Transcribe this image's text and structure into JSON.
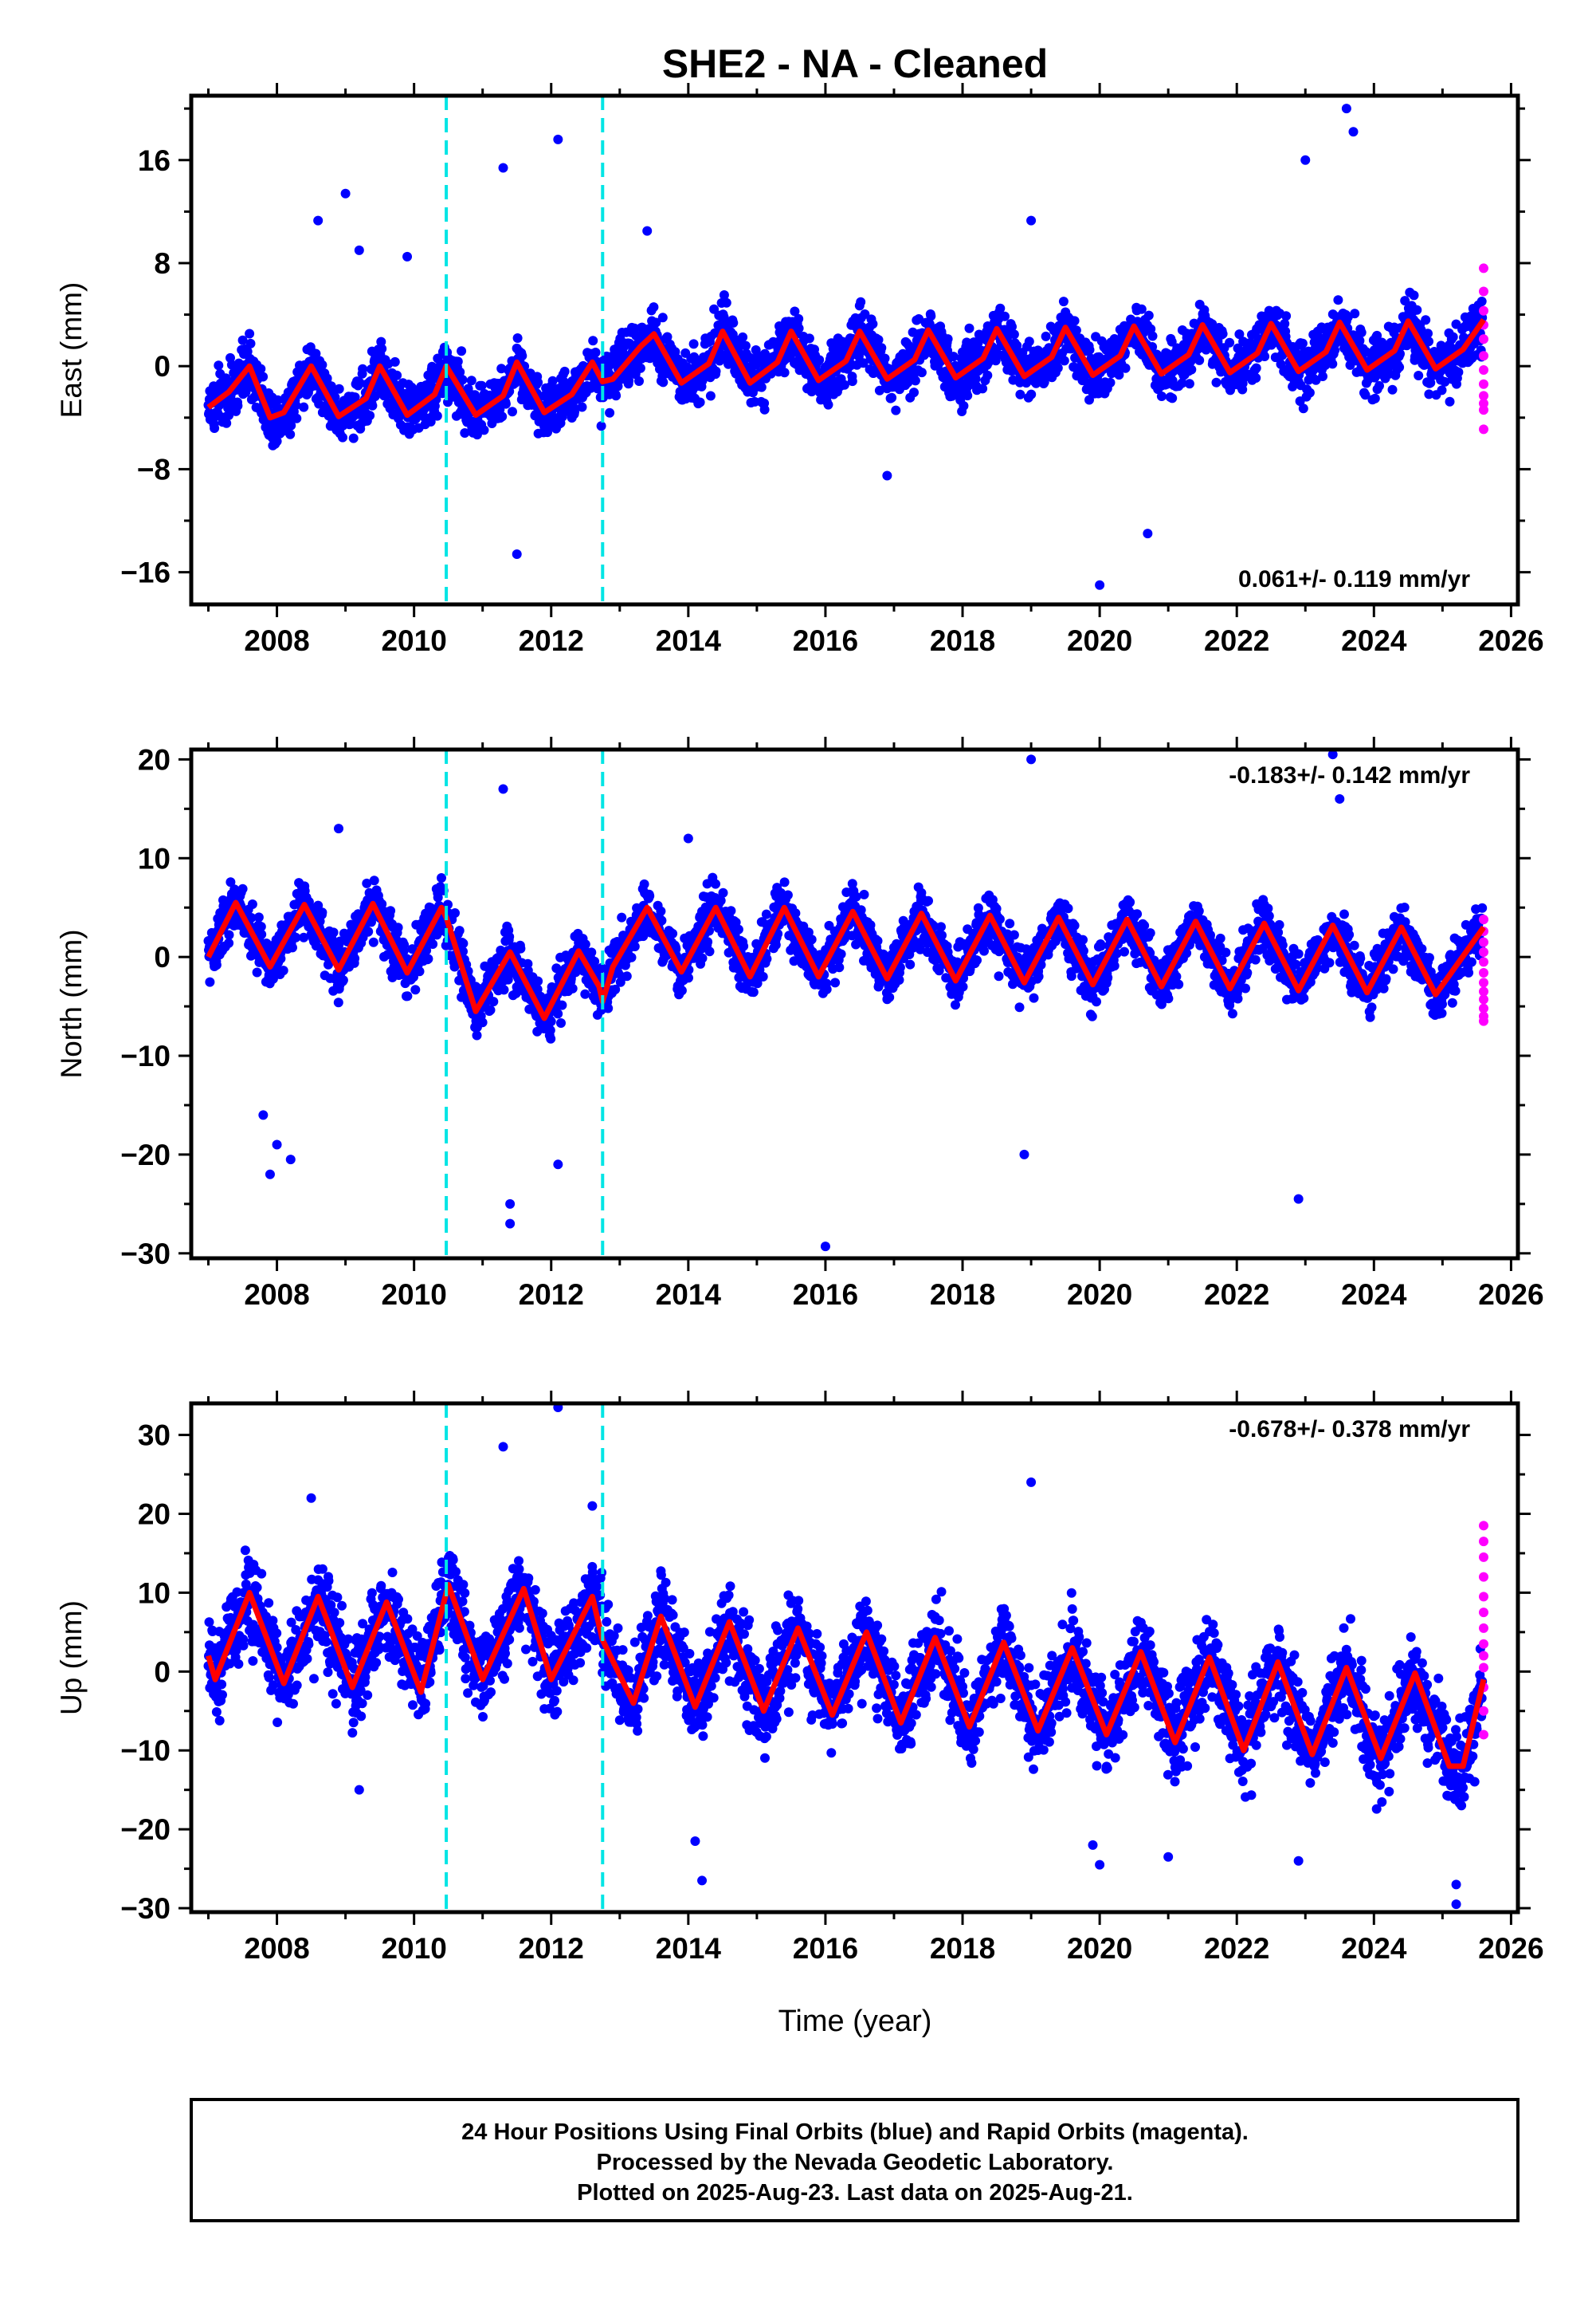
{
  "title": "SHE2  - NA - Cleaned",
  "xlabel": "Time (year)",
  "footer": {
    "line1": "24 Hour Positions Using Final Orbits (blue) and Rapid Orbits (magenta).",
    "line2": "Processed by the Nevada Geodetic Laboratory.",
    "line3": "Plotted on 2025-Aug-23. Last data on 2025-Aug-21."
  },
  "colors": {
    "final": "#0000ff",
    "rapid": "#ff00ff",
    "model": "#ff0000",
    "steps": "#00e5e5"
  },
  "chart_data": [
    {
      "type": "scatter",
      "component": "east",
      "ylabel": "East (mm)",
      "rate": "0.061+/- 0.119 mm/yr",
      "xlim": [
        2006.75,
        2026.1
      ],
      "ylim": [
        -18.5,
        21
      ],
      "xticks": [
        2008,
        2010,
        2012,
        2014,
        2016,
        2018,
        2020,
        2022,
        2024,
        2026
      ],
      "yticks": [
        -16,
        -8,
        0,
        8,
        16
      ],
      "steps": [
        2010.47,
        2012.75
      ],
      "model": {
        "x": [
          2007.0,
          2007.3,
          2007.6,
          2007.9,
          2008.1,
          2008.5,
          2008.9,
          2009.3,
          2009.5,
          2009.9,
          2010.3,
          2010.47,
          2010.9,
          2011.3,
          2011.5,
          2011.9,
          2012.3,
          2012.6,
          2012.75,
          2012.9,
          2013.3,
          2013.5,
          2013.9,
          2014.3,
          2014.5,
          2014.9,
          2015.3,
          2015.5,
          2015.9,
          2016.3,
          2016.5,
          2016.9,
          2017.3,
          2017.5,
          2017.9,
          2018.3,
          2018.5,
          2018.9,
          2019.3,
          2019.5,
          2019.9,
          2020.3,
          2020.5,
          2020.9,
          2021.3,
          2021.5,
          2021.9,
          2022.3,
          2022.5,
          2022.9,
          2023.3,
          2023.5,
          2023.9,
          2024.3,
          2024.5,
          2024.9,
          2025.3,
          2025.6
        ],
        "y": [
          -3.2,
          -2.0,
          0.0,
          -4.0,
          -3.6,
          0.0,
          -3.9,
          -2.5,
          0.0,
          -3.8,
          -2.2,
          0.0,
          -3.8,
          -2.3,
          0.3,
          -3.6,
          -2.2,
          0.3,
          -1.2,
          -1.0,
          1.5,
          2.5,
          -1.3,
          0.2,
          2.7,
          -1.3,
          0.3,
          2.7,
          -1.1,
          0.4,
          2.7,
          -1.0,
          0.5,
          2.8,
          -0.9,
          0.6,
          2.9,
          -0.8,
          0.7,
          3.0,
          -0.7,
          0.8,
          3.1,
          -0.6,
          0.9,
          3.2,
          -0.5,
          1.0,
          3.3,
          -0.4,
          1.1,
          3.4,
          -0.3,
          1.2,
          3.5,
          -0.2,
          1.3,
          3.6
        ]
      },
      "rapid": {
        "x": [
          2025.6,
          2025.6,
          2025.6,
          2025.6,
          2025.6,
          2025.6,
          2025.6,
          2025.6,
          2025.6,
          2025.6,
          2025.6,
          2025.6
        ],
        "y": [
          7.6,
          5.8,
          4.3,
          3.2,
          2.1,
          0.8,
          -0.3,
          -1.4,
          -2.3,
          -2.9,
          -3.4,
          -4.9
        ]
      },
      "outliers": {
        "x": [
          2008.6,
          2009.0,
          2009.2,
          2009.9,
          2011.3,
          2012.1,
          2011.5,
          2019.0,
          2020.0,
          2023.6,
          2023.7,
          2023.0,
          2013.4,
          2016.9,
          2020.7
        ],
        "y": [
          11.3,
          13.4,
          9.0,
          8.5,
          15.4,
          17.6,
          -14.6,
          11.3,
          -17.0,
          20.0,
          18.2,
          16.0,
          10.5,
          -8.5,
          -13.0
        ]
      }
    },
    {
      "type": "scatter",
      "component": "north",
      "ylabel": "North (mm)",
      "rate": "-0.183+/- 0.142 mm/yr",
      "xlim": [
        2006.75,
        2026.1
      ],
      "ylim": [
        -30.5,
        21
      ],
      "xticks": [
        2008,
        2010,
        2012,
        2014,
        2016,
        2018,
        2020,
        2022,
        2024,
        2026
      ],
      "yticks": [
        -30,
        -20,
        -10,
        0,
        10,
        20
      ],
      "steps": [
        2010.47,
        2012.75
      ],
      "model": {
        "x": [
          2007.0,
          2007.4,
          2007.9,
          2008.4,
          2008.9,
          2009.4,
          2009.9,
          2010.4,
          2010.47,
          2010.9,
          2011.4,
          2011.9,
          2012.4,
          2012.7,
          2012.75,
          2012.9,
          2013.4,
          2013.9,
          2014.4,
          2014.9,
          2015.4,
          2015.9,
          2016.4,
          2016.9,
          2017.4,
          2017.9,
          2018.4,
          2018.9,
          2019.4,
          2019.9,
          2020.4,
          2020.9,
          2021.4,
          2021.9,
          2022.4,
          2022.9,
          2023.4,
          2023.9,
          2024.4,
          2024.9,
          2025.6
        ],
        "y": [
          0.0,
          5.5,
          -1.0,
          5.3,
          -1.3,
          5.4,
          -1.6,
          5.0,
          4.0,
          -5.5,
          0.5,
          -6.2,
          0.6,
          -3.0,
          -4.5,
          -1.0,
          5.0,
          -1.5,
          5.0,
          -2.0,
          5.0,
          -2.0,
          4.6,
          -2.2,
          4.4,
          -2.4,
          4.2,
          -2.6,
          4.0,
          -2.8,
          3.8,
          -3.0,
          3.6,
          -3.2,
          3.4,
          -3.4,
          3.2,
          -3.6,
          3.0,
          -3.8,
          3.0
        ]
      },
      "rapid": {
        "x": [
          2025.6,
          2025.6,
          2025.6,
          2025.6,
          2025.6,
          2025.6,
          2025.6,
          2025.6,
          2025.6,
          2025.6,
          2025.6,
          2025.6
        ],
        "y": [
          3.8,
          2.6,
          1.5,
          0.5,
          -0.5,
          -1.6,
          -2.6,
          -3.5,
          -4.3,
          -5.2,
          -6.0,
          -6.5
        ]
      },
      "outliers": {
        "x": [
          2007.8,
          2007.9,
          2008.0,
          2008.2,
          2011.3,
          2011.4,
          2011.4,
          2012.1,
          2016.0,
          2019.0,
          2018.9,
          2022.9,
          2023.4,
          2023.5,
          2014.0,
          2008.9
        ],
        "y": [
          -16.0,
          -22.0,
          -19.0,
          -20.5,
          17.0,
          -25.0,
          -27.0,
          -21.0,
          -29.3,
          20.0,
          -20.0,
          -24.5,
          20.5,
          16.0,
          12.0,
          13.0
        ]
      }
    },
    {
      "type": "scatter",
      "component": "up",
      "ylabel": "Up (mm)",
      "rate": "-0.678+/- 0.378 mm/yr",
      "xlim": [
        2006.75,
        2026.1
      ],
      "ylim": [
        -30.5,
        34
      ],
      "xticks": [
        2008,
        2010,
        2012,
        2014,
        2016,
        2018,
        2020,
        2022,
        2024,
        2026
      ],
      "yticks": [
        -30,
        -20,
        -10,
        0,
        10,
        20,
        30
      ],
      "steps": [
        2010.47,
        2012.75
      ],
      "model": {
        "x": [
          2007.0,
          2007.1,
          2007.6,
          2008.1,
          2008.6,
          2009.1,
          2009.6,
          2010.1,
          2010.5,
          2011.0,
          2011.6,
          2012.0,
          2012.6,
          2012.75,
          2013.2,
          2013.6,
          2014.1,
          2014.6,
          2015.1,
          2015.6,
          2016.1,
          2016.6,
          2017.1,
          2017.6,
          2018.1,
          2018.6,
          2019.1,
          2019.6,
          2020.1,
          2020.6,
          2021.1,
          2021.6,
          2022.1,
          2022.6,
          2023.1,
          2023.6,
          2024.1,
          2024.6,
          2025.1,
          2025.3,
          2025.6
        ],
        "y": [
          2.0,
          -1.0,
          10.0,
          -1.5,
          9.5,
          -2.0,
          8.8,
          -2.6,
          11.0,
          -1.0,
          10.5,
          -1.0,
          9.5,
          4.0,
          -4.0,
          7.0,
          -4.5,
          6.3,
          -5.0,
          5.5,
          -5.5,
          5.0,
          -6.5,
          4.3,
          -7.0,
          3.7,
          -7.5,
          3.0,
          -8.0,
          2.5,
          -9.0,
          1.8,
          -10.0,
          1.2,
          -10.5,
          0.5,
          -11.0,
          -0.2,
          -12.0,
          -12.0,
          -1.0
        ]
      },
      "rapid": {
        "x": [
          2025.6,
          2025.6,
          2025.6,
          2025.6,
          2025.6,
          2025.6,
          2025.6,
          2025.6,
          2025.6,
          2025.6,
          2025.6,
          2025.6,
          2025.6
        ],
        "y": [
          18.5,
          16.5,
          14.5,
          12.0,
          9.5,
          7.5,
          5.5,
          3.5,
          2.0,
          0.5,
          -2.0,
          -5.0,
          -8.0
        ]
      },
      "outliers": {
        "x": [
          2012.1,
          2011.3,
          2019.0,
          2014.2,
          2014.1,
          2025.2,
          2025.2,
          2022.9,
          2021.0,
          2020.0,
          2019.9,
          2009.2,
          2008.5,
          2012.6
        ],
        "y": [
          33.5,
          28.5,
          24.0,
          -26.5,
          -21.5,
          -29.5,
          -27.0,
          -24.0,
          -23.5,
          -24.5,
          -22.0,
          -15.0,
          22.0,
          21.0
        ]
      }
    }
  ]
}
